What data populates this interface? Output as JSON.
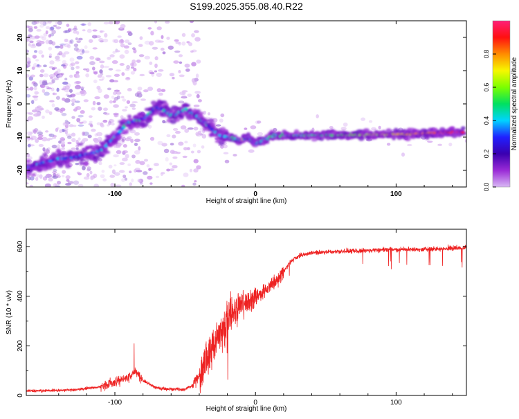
{
  "title": "S199.2025.355.08.40.R22",
  "chart_data": [
    {
      "type": "heatmap",
      "xlabel": "Height of straight line (km)",
      "ylabel": "Frequency (Hz)",
      "xlim": [
        -163,
        150
      ],
      "ylim": [
        -25,
        25
      ],
      "xticks": [
        -100,
        0,
        100
      ],
      "yticks": [
        -20,
        -10,
        0,
        10,
        20
      ],
      "ridge": {
        "x": [
          -160,
          -145,
          -130,
          -118,
          -108,
          -100,
          -92,
          -85,
          -80,
          -75,
          -70,
          -65,
          -60,
          -55,
          -50,
          -45,
          -40,
          -35,
          -30,
          -25,
          -20,
          -15,
          -10,
          -5,
          0,
          5,
          10,
          15,
          25,
          40,
          60,
          80,
          100,
          120,
          140,
          148
        ],
        "y": [
          -19,
          -17,
          -16,
          -15,
          -13.5,
          -10,
          -6,
          -5,
          -4.5,
          -3,
          -1,
          -2,
          -3.5,
          -3,
          -1.5,
          -3,
          -4,
          -6,
          -8,
          -9.5,
          -10,
          -10.5,
          -11,
          -10,
          -12,
          -11,
          -10,
          -9.5,
          -9.5,
          -9.3,
          -9.4,
          -9.3,
          -9.1,
          -8.9,
          -8.6,
          -8.6
        ]
      },
      "colorbar": {
        "label": "Normalized spectral amplitude",
        "ticks": [
          "0.0",
          "0.2",
          "0.4",
          "0.6",
          "0.8"
        ],
        "tick_values": [
          0.0,
          0.2,
          0.4,
          0.6,
          0.8
        ],
        "range": [
          0,
          1
        ],
        "colormap": [
          "#d9b8f5",
          "#9a2ad6",
          "#3a00b0",
          "#2020ff",
          "#00d4ff",
          "#00e060",
          "#7bff00",
          "#f7f700",
          "#ff8c00",
          "#ff1010",
          "#ff1f78"
        ]
      }
    },
    {
      "type": "line",
      "xlabel": "Height of straight line (km)",
      "ylabel": "SNR (10 * v/v)",
      "xlim": [
        -163,
        150
      ],
      "ylim": [
        0,
        670
      ],
      "xticks": [
        -100,
        0,
        100
      ],
      "yticks": [
        0,
        200,
        400,
        600
      ],
      "color": "#ee2222",
      "trend": {
        "x": [
          -163,
          -130,
          -110,
          -100,
          -90,
          -85,
          -80,
          -70,
          -60,
          -50,
          -45,
          -40,
          -35,
          -30,
          -25,
          -20,
          -15,
          -10,
          -5,
          0,
          5,
          10,
          15,
          20,
          25,
          30,
          40,
          60,
          80,
          100,
          120,
          150
        ],
        "y": [
          18,
          22,
          35,
          55,
          75,
          100,
          60,
          30,
          25,
          25,
          40,
          80,
          140,
          200,
          260,
          300,
          340,
          360,
          380,
          400,
          420,
          430,
          460,
          500,
          540,
          560,
          575,
          580,
          585,
          588,
          590,
          595
        ]
      }
    }
  ]
}
